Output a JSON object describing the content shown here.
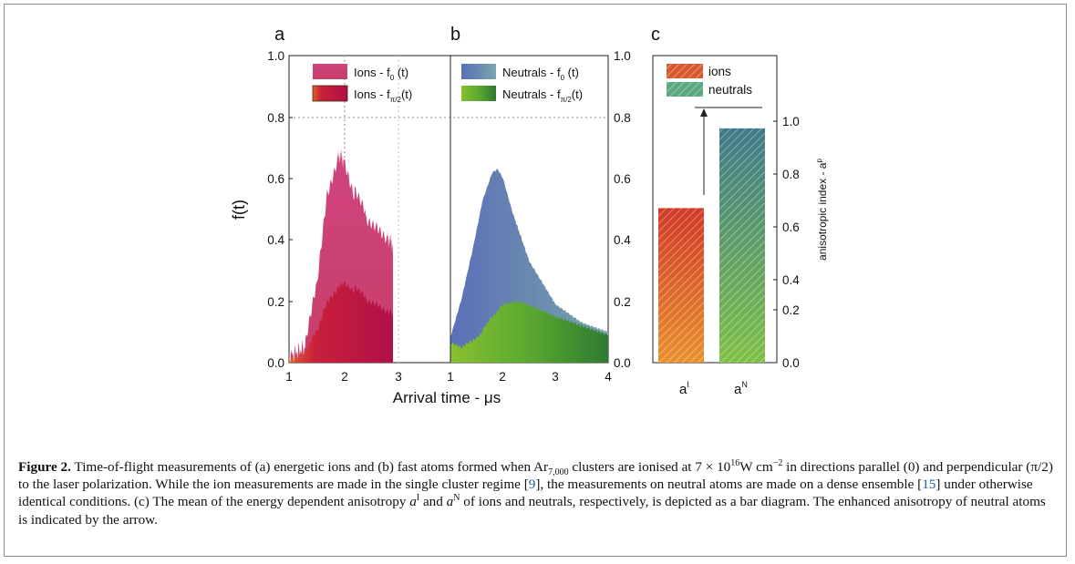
{
  "figure": {
    "panels": {
      "a": {
        "label": "a"
      },
      "b": {
        "label": "b"
      },
      "c": {
        "label": "c"
      }
    },
    "left_axis": {
      "label": "f(t)",
      "ticks": [
        "1.0",
        "0.8",
        "0.6",
        "0.4",
        "0.2",
        "0.0"
      ]
    },
    "middle_axis": {
      "ticks": [
        "1.0",
        "0.8",
        "0.6",
        "0.4",
        "0.2",
        "0.0"
      ]
    },
    "right_axis": {
      "label": "anisotropic index - a",
      "label_sup": "p",
      "ticks": [
        "1.0",
        "0.8",
        "0.6",
        "0.4",
        "0.2",
        "0.0"
      ]
    },
    "x_axis": {
      "label": "Arrival time - μs",
      "ticks_a": [
        "1",
        "2",
        "3"
      ],
      "ticks_b": [
        "1",
        "2",
        "3",
        "4"
      ]
    },
    "legend_a": [
      {
        "text": "Ions - f",
        "sub": "0",
        "tail": " (t)"
      },
      {
        "text": "Ions - f",
        "sub": "π/2",
        "tail": "(t)"
      }
    ],
    "legend_b": [
      {
        "text": "Neutrals - f",
        "sub": "0",
        "tail": " (t)"
      },
      {
        "text": "Neutrals - f",
        "sub": "π/2",
        "tail": "(t)"
      }
    ],
    "legend_c": [
      "ions",
      "neutrals"
    ],
    "bar_c_labels": [
      {
        "base": "a",
        "sup": "I"
      },
      {
        "base": "a",
        "sup": "N"
      }
    ]
  },
  "chart_data": [
    {
      "type": "area",
      "panel": "a",
      "xlabel": "Arrival time - μs",
      "ylabel": "f(t)",
      "xlim": [
        1,
        2.9
      ],
      "ylim": [
        0,
        1.0
      ],
      "series": [
        {
          "name": "Ions - f0 (t)",
          "x": [
            1.0,
            1.3,
            1.5,
            1.7,
            1.9,
            2.0,
            2.2,
            2.4,
            2.6,
            2.8,
            2.9
          ],
          "y": [
            0.02,
            0.05,
            0.25,
            0.55,
            0.68,
            0.66,
            0.55,
            0.48,
            0.44,
            0.41,
            0.38
          ]
        },
        {
          "name": "Ions - fπ/2(t)",
          "x": [
            1.0,
            1.3,
            1.5,
            1.7,
            1.9,
            2.0,
            2.2,
            2.4,
            2.6,
            2.8,
            2.9
          ],
          "y": [
            0.01,
            0.03,
            0.1,
            0.2,
            0.25,
            0.26,
            0.24,
            0.21,
            0.19,
            0.17,
            0.16
          ]
        }
      ]
    },
    {
      "type": "area",
      "panel": "b",
      "xlabel": "Arrival time - μs",
      "xlim": [
        1,
        4
      ],
      "ylim": [
        0,
        1.0
      ],
      "series": [
        {
          "name": "Neutrals - f0 (t)",
          "x": [
            1.0,
            1.2,
            1.4,
            1.6,
            1.8,
            1.9,
            2.0,
            2.2,
            2.5,
            3.0,
            3.5,
            4.0
          ],
          "y": [
            0.08,
            0.2,
            0.35,
            0.52,
            0.62,
            0.63,
            0.6,
            0.48,
            0.33,
            0.19,
            0.13,
            0.1
          ]
        },
        {
          "name": "Neutrals - fπ/2(t)",
          "x": [
            1.0,
            1.2,
            1.4,
            1.6,
            1.8,
            2.0,
            2.3,
            2.6,
            3.0,
            3.5,
            4.0
          ],
          "y": [
            0.06,
            0.05,
            0.07,
            0.1,
            0.15,
            0.19,
            0.2,
            0.18,
            0.15,
            0.12,
            0.09
          ]
        }
      ]
    },
    {
      "type": "bar",
      "panel": "c",
      "ylabel": "anisotropic index - a^p",
      "ylim": [
        0,
        1.16
      ],
      "categories": [
        "a^I",
        "a^N"
      ],
      "series": [
        {
          "values": [
            0.64,
            0.97
          ]
        }
      ],
      "annotations": [
        "arrow from a^I to a^N"
      ]
    }
  ],
  "caption": {
    "lead": "Figure 2.",
    "p1": " Time-of-flight measurements of (a) energetic ions and (b) fast atoms formed when Ar",
    "sub_cluster": "7,000",
    "p2": " clusters are ionised at 7 × 10",
    "sup_exp": "16",
    "p3": "W cm",
    "sup_unit": "−2",
    "p4": " in directions parallel (0) and perpendicular (π/2) to the laser polarization. While the ion measurements are made in the single cluster regime [",
    "ref1": "9",
    "p5": "], the measurements on neutral atoms are made on a dense ensemble [",
    "ref2": "15",
    "p6": "] under otherwise identical conditions. (c) The mean of the energy dependent anisotropy ",
    "aI_base": "a",
    "aI_sup": "I",
    "p7": " and ",
    "aN_base": "a",
    "aN_sup": "N",
    "p8": " of ions and neutrals, respectively, is depicted as a bar diagram. The enhanced anisotropy of neutral atoms is indicated by the arrow."
  },
  "colors": {
    "ions_f0": "#cf4f86",
    "ions_fpi2": "#b8153c",
    "neutrals_f0": "#6a8fb0",
    "neutrals_fpi2": "#5aa830",
    "ions_bar": "#e06030",
    "neutrals_bar": "#4fa070"
  }
}
